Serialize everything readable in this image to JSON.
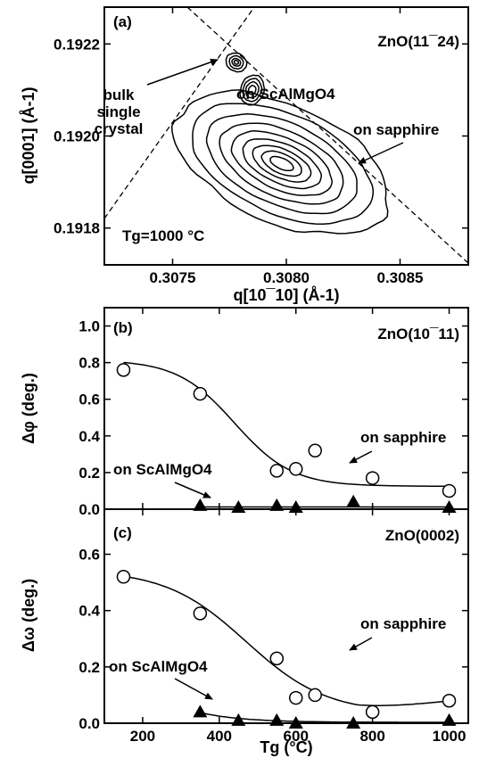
{
  "panel_a": {
    "label": "(a)",
    "title": "ZnO(11¯24)",
    "xlabel": "q[10¯10] (Å-1)",
    "ylabel": "q[0001] (Å-1)",
    "x_ticks": [
      "0.3075",
      "0.3080",
      "0.3085"
    ],
    "y_ticks": [
      "0.1918",
      "0.1920",
      "0.1922"
    ],
    "annotations": {
      "bulk_line1": "bulk",
      "bulk_line2": "single",
      "bulk_line3": "crystal",
      "scalmgo": "on ScAlMgO4",
      "sapphire": "on sapphire",
      "tg": "Tg=1000 °C"
    }
  },
  "panel_b": {
    "label": "(b)",
    "title": "ZnO(10¯11)",
    "ylabel": "Δφ (deg.)",
    "y_ticks": [
      "0.0",
      "0.2",
      "0.4",
      "0.6",
      "0.8",
      "1.0"
    ],
    "annotations": {
      "sapphire": "on sapphire",
      "scalmgo": "on ScAlMgO4"
    }
  },
  "panel_c": {
    "label": "(c)",
    "title": "ZnO(0002)",
    "ylabel": "Δω (deg.)",
    "xlabel": "Tg (°C)",
    "x_ticks": [
      "200",
      "400",
      "600",
      "800",
      "1000"
    ],
    "y_ticks": [
      "0.0",
      "0.2",
      "0.4",
      "0.6"
    ],
    "annotations": {
      "sapphire": "on sapphire",
      "scalmgo": "on ScAlMgO4"
    }
  },
  "chart_data": [
    {
      "type": "contour",
      "title": "ZnO(11¯24)",
      "xlabel": "q[10¯10] (Å-1)",
      "ylabel": "q[0001] (Å-1)",
      "xlim": [
        0.3072,
        0.3088
      ],
      "ylim": [
        0.19172,
        0.19228
      ],
      "series": [
        {
          "name": "on sapphire",
          "center": [
            0.30798,
            0.19194
          ]
        },
        {
          "name": "on ScAlMgO4",
          "center": [
            0.30785,
            0.1921
          ]
        },
        {
          "name": "bulk single crystal",
          "center": [
            0.30778,
            0.19216
          ]
        }
      ]
    },
    {
      "type": "scatter",
      "title": "ZnO(10¯11)",
      "xlabel": "",
      "ylabel": "Δφ (deg.)",
      "xlim": [
        100,
        1050
      ],
      "ylim": [
        0,
        1.1
      ],
      "series": [
        {
          "name": "on sapphire",
          "marker": "circle",
          "x": [
            150,
            350,
            550,
            600,
            650,
            800,
            1000
          ],
          "y": [
            0.76,
            0.63,
            0.21,
            0.22,
            0.32,
            0.17,
            0.1
          ]
        },
        {
          "name": "on ScAlMgO4",
          "marker": "triangle",
          "x": [
            350,
            450,
            550,
            600,
            750,
            1000
          ],
          "y": [
            0.02,
            0.01,
            0.02,
            0.01,
            0.04,
            0.01
          ]
        }
      ]
    },
    {
      "type": "scatter",
      "title": "ZnO(0002)",
      "xlabel": "Tg (°C)",
      "ylabel": "Δω (deg.)",
      "xlim": [
        100,
        1050
      ],
      "ylim": [
        0,
        0.76
      ],
      "series": [
        {
          "name": "on sapphire",
          "marker": "circle",
          "x": [
            150,
            350,
            550,
            600,
            650,
            800,
            1000
          ],
          "y": [
            0.52,
            0.39,
            0.23,
            0.09,
            0.1,
            0.04,
            0.08
          ]
        },
        {
          "name": "on ScAlMgO4",
          "marker": "triangle",
          "x": [
            350,
            450,
            550,
            600,
            750,
            1000
          ],
          "y": [
            0.04,
            0.01,
            0.01,
            0.0,
            0.0,
            0.01
          ]
        }
      ]
    }
  ]
}
